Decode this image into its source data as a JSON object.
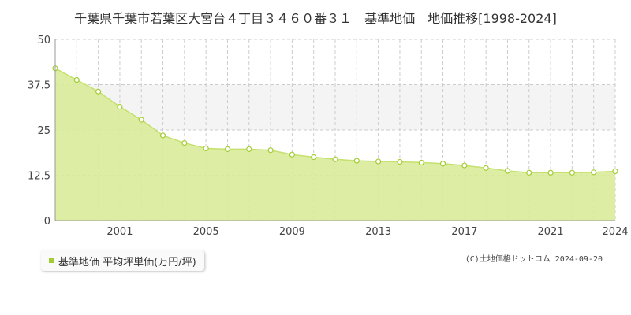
{
  "title": "千葉県千葉市若葉区大宮台４丁目３４６０番３１　基準地価　地価推移[1998-2024]",
  "credit": "(C)土地価格ドットコム 2024-09-20",
  "colors": {
    "fill": "#d9ec9a",
    "line": "#c5e06e",
    "marker": "#a3cc33",
    "grid": "#cccccc",
    "band": "#f4f4f4"
  },
  "chart_data": {
    "type": "area",
    "x": [
      1998,
      1999,
      2000,
      2001,
      2002,
      2003,
      2004,
      2005,
      2006,
      2007,
      2008,
      2009,
      2010,
      2011,
      2012,
      2013,
      2014,
      2015,
      2016,
      2017,
      2018,
      2019,
      2020,
      2021,
      2022,
      2023,
      2024
    ],
    "series": [
      {
        "name": "基準地価 平均坪単価(万円/坪)",
        "values": [
          42.0,
          38.8,
          35.6,
          31.4,
          27.8,
          23.5,
          21.4,
          19.9,
          19.7,
          19.7,
          19.4,
          18.2,
          17.5,
          16.9,
          16.5,
          16.3,
          16.2,
          16.0,
          15.7,
          15.2,
          14.5,
          13.7,
          13.2,
          13.2,
          13.2,
          13.3,
          13.6
        ]
      }
    ],
    "xticks": [
      "2001",
      "2005",
      "2009",
      "2013",
      "2017",
      "2021",
      "2024"
    ],
    "yticks": [
      "0",
      "12.5",
      "25",
      "37.5",
      "50"
    ],
    "ylim": [
      0,
      50
    ],
    "xlim": [
      1998,
      2024
    ],
    "grid": true,
    "legend": "bottom-left"
  }
}
